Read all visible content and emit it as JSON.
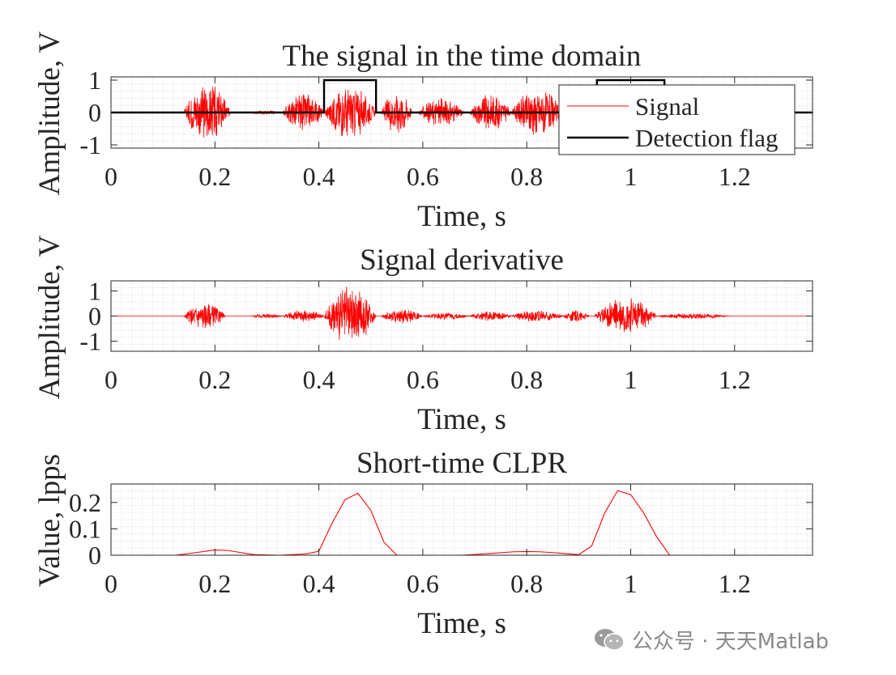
{
  "chart_data": [
    {
      "type": "line",
      "title": "The signal in the time domain",
      "xlabel": "Time, s",
      "ylabel": "Amplitude, V",
      "xlim": [
        0,
        1.35
      ],
      "ylim": [
        -1.1,
        1.1
      ],
      "xticks": [
        0,
        0.2,
        0.4,
        0.6,
        0.8,
        1,
        1.2
      ],
      "xtick_labels": [
        "0",
        "0.2",
        "0.4",
        "0.6",
        "0.8",
        "1",
        "1.2"
      ],
      "yticks": [
        -1,
        0,
        1
      ],
      "ytick_labels": [
        "-1",
        "0",
        "1"
      ],
      "grid": "minor-dotted",
      "legend_position": "top-right",
      "signal_bursts": [
        {
          "start": 0.14,
          "end": 0.23,
          "peak": 0.95
        },
        {
          "start": 0.27,
          "end": 0.32,
          "peak": 0.08
        },
        {
          "start": 0.33,
          "end": 0.41,
          "peak": 0.6
        },
        {
          "start": 0.41,
          "end": 0.51,
          "peak": 0.85
        },
        {
          "start": 0.52,
          "end": 0.58,
          "peak": 0.7
        },
        {
          "start": 0.59,
          "end": 0.68,
          "peak": 0.45
        },
        {
          "start": 0.69,
          "end": 0.77,
          "peak": 0.6
        },
        {
          "start": 0.77,
          "end": 0.87,
          "peak": 0.75
        },
        {
          "start": 0.87,
          "end": 0.93,
          "peak": 0.6
        },
        {
          "start": 0.93,
          "end": 1.05,
          "peak": 0.8
        }
      ],
      "series": [
        {
          "name": "Signal",
          "color": "#ff0000",
          "style": "oscillating"
        },
        {
          "name": "Detection flag",
          "color": "#000000",
          "x": [
            0,
            0.41,
            0.41,
            0.51,
            0.51,
            0.935,
            0.935,
            1.065,
            1.065,
            1.35
          ],
          "y": [
            0,
            0,
            1,
            1,
            0,
            0,
            1,
            1,
            0,
            0
          ]
        }
      ]
    },
    {
      "type": "line",
      "title": "Signal derivative",
      "xlabel": "Time, s",
      "ylabel": "Amplitude, V",
      "xlim": [
        0,
        1.35
      ],
      "ylim": [
        -1.4,
        1.4
      ],
      "xticks": [
        0,
        0.2,
        0.4,
        0.6,
        0.8,
        1,
        1.2
      ],
      "xtick_labels": [
        "0",
        "0.2",
        "0.4",
        "0.6",
        "0.8",
        "1",
        "1.2"
      ],
      "yticks": [
        -1,
        0,
        1
      ],
      "ytick_labels": [
        "-1",
        "0",
        "1"
      ],
      "grid": "minor-dotted",
      "signal_bursts": [
        {
          "start": 0.14,
          "end": 0.22,
          "peak": 0.55
        },
        {
          "start": 0.27,
          "end": 0.33,
          "peak": 0.1
        },
        {
          "start": 0.33,
          "end": 0.41,
          "peak": 0.25
        },
        {
          "start": 0.41,
          "end": 0.51,
          "peak": 1.2
        },
        {
          "start": 0.52,
          "end": 0.6,
          "peak": 0.3
        },
        {
          "start": 0.6,
          "end": 0.69,
          "peak": 0.15
        },
        {
          "start": 0.69,
          "end": 0.77,
          "peak": 0.2
        },
        {
          "start": 0.77,
          "end": 0.87,
          "peak": 0.25
        },
        {
          "start": 0.87,
          "end": 0.92,
          "peak": 0.25
        },
        {
          "start": 0.93,
          "end": 1.05,
          "peak": 0.75
        },
        {
          "start": 1.05,
          "end": 1.19,
          "peak": 0.12
        }
      ],
      "series": [
        {
          "name": "",
          "color": "#ff0000",
          "style": "oscillating"
        }
      ]
    },
    {
      "type": "line",
      "title": "Short-time CLPR",
      "xlabel": "Time, s",
      "ylabel": "Value, lpps",
      "xlim": [
        0,
        1.35
      ],
      "ylim": [
        0,
        0.27
      ],
      "xticks": [
        0,
        0.2,
        0.4,
        0.6,
        0.8,
        1,
        1.2
      ],
      "xtick_labels": [
        "0",
        "0.2",
        "0.4",
        "0.6",
        "0.8",
        "1",
        "1.2"
      ],
      "yticks": [
        0,
        0.1,
        0.2
      ],
      "ytick_labels": [
        "0",
        "0.1",
        "0.2"
      ],
      "grid": "minor-dotted",
      "series": [
        {
          "name": "",
          "color": "#ff0000",
          "x": [
            0.025,
            0.075,
            0.125,
            0.175,
            0.2,
            0.225,
            0.25,
            0.275,
            0.325,
            0.375,
            0.4,
            0.425,
            0.45,
            0.475,
            0.5,
            0.525,
            0.55,
            0.575,
            0.625,
            0.675,
            0.725,
            0.775,
            0.8,
            0.825,
            0.85,
            0.875,
            0.9,
            0.925,
            0.95,
            0.975,
            1.0,
            1.025,
            1.05,
            1.075,
            1.125,
            1.175,
            1.225,
            1.275,
            1.325
          ],
          "y": [
            0,
            0,
            0,
            0.013,
            0.02,
            0.018,
            0.01,
            0.002,
            0,
            0.005,
            0.015,
            0.12,
            0.21,
            0.235,
            0.17,
            0.05,
            0,
            0,
            0,
            0,
            0.006,
            0.013,
            0.014,
            0.013,
            0.01,
            0.006,
            0.002,
            0.035,
            0.16,
            0.245,
            0.23,
            0.16,
            0.07,
            0,
            0,
            0,
            0,
            0,
            0
          ]
        }
      ]
    }
  ],
  "watermark": {
    "text": "公众号 · 天天Matlab",
    "icon": "wechat-icon"
  }
}
